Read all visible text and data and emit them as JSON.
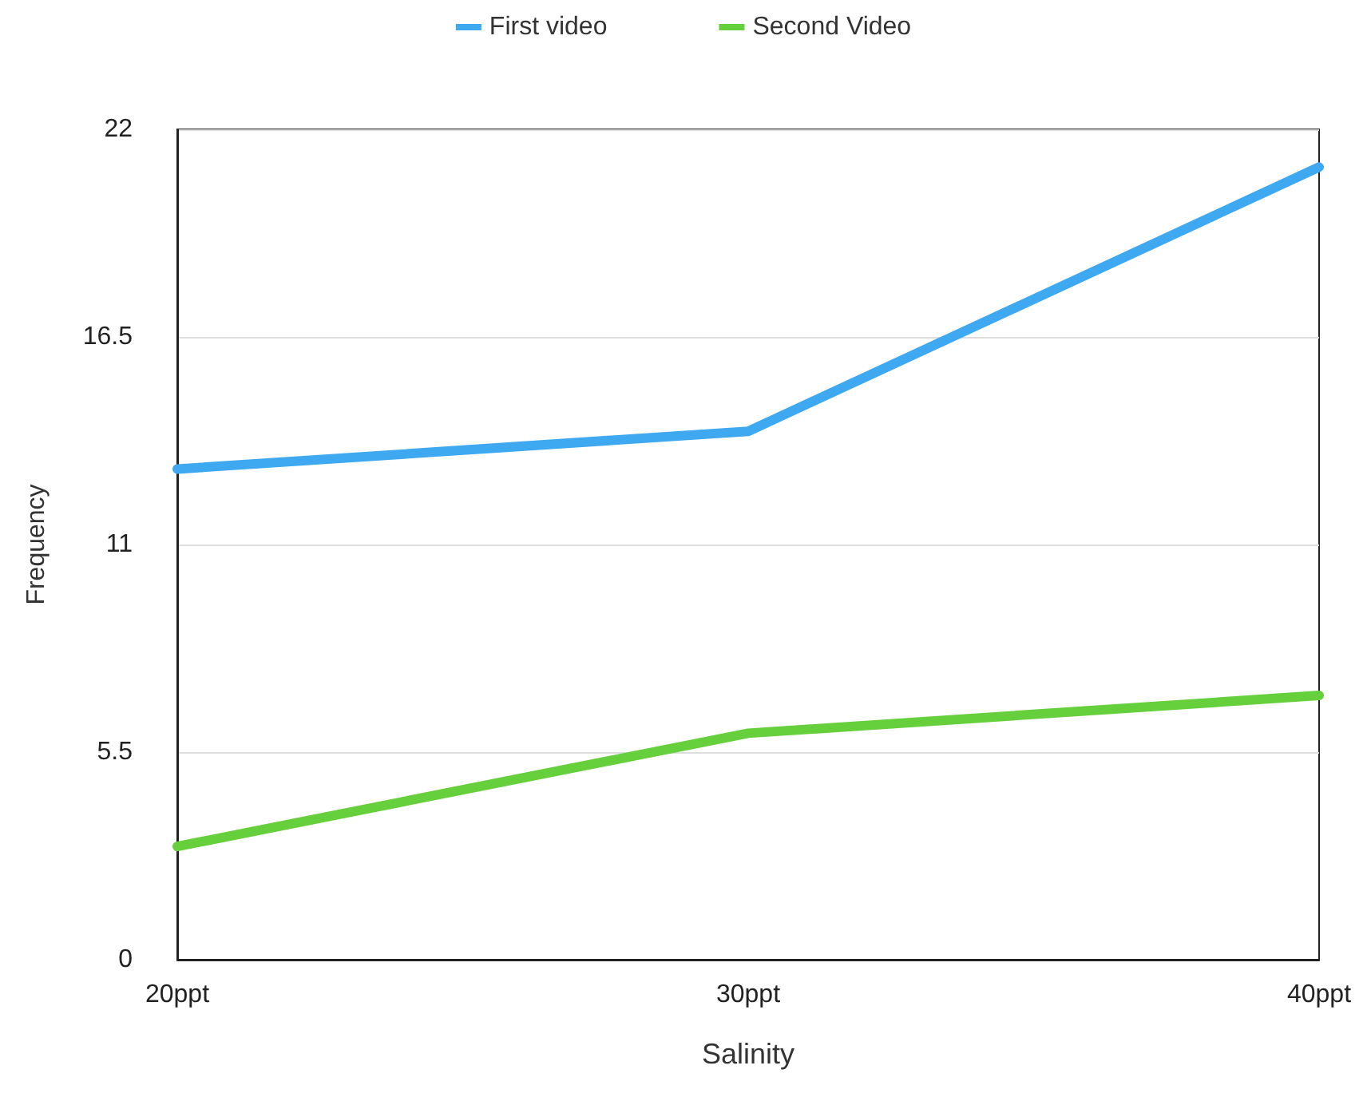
{
  "chart_data": {
    "type": "line",
    "xlabel": "Salinity",
    "ylabel": "Frequency",
    "categories": [
      "20ppt",
      "30ppt",
      "40ppt"
    ],
    "series": [
      {
        "name": "First video",
        "color": "#3ea8f0",
        "values": [
          13,
          14,
          21
        ]
      },
      {
        "name": "Second Video",
        "color": "#66d03c",
        "values": [
          3,
          6,
          7
        ]
      }
    ],
    "ylim": [
      0,
      22
    ],
    "yticks": [
      0,
      5.5,
      11,
      16.5,
      22
    ],
    "grid": "y",
    "legend": "top",
    "marker": "none",
    "line_style": "solid"
  }
}
